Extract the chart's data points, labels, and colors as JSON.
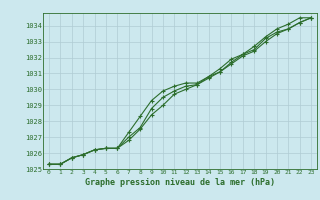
{
  "xlabel": "Graphe pression niveau de la mer (hPa)",
  "bg_color": "#cce8ee",
  "grid_color": "#b0ccd4",
  "line_color": "#2d6e2d",
  "hours": [
    0,
    1,
    2,
    3,
    4,
    5,
    6,
    7,
    8,
    9,
    10,
    11,
    12,
    13,
    14,
    15,
    16,
    17,
    18,
    19,
    20,
    21,
    22,
    23
  ],
  "line1": [
    1025.3,
    1025.3,
    1025.7,
    1025.9,
    1026.2,
    1026.3,
    1026.3,
    1027.3,
    1028.3,
    1029.3,
    1029.9,
    1030.2,
    1030.4,
    1030.4,
    1030.8,
    1031.3,
    1031.9,
    1032.2,
    1032.5,
    1033.2,
    1033.6,
    1033.8,
    1034.2,
    1034.5
  ],
  "line2": [
    1025.3,
    1025.3,
    1025.7,
    1025.9,
    1026.2,
    1026.3,
    1026.3,
    1026.8,
    1027.5,
    1028.4,
    1029.0,
    1029.7,
    1030.0,
    1030.3,
    1030.7,
    1031.1,
    1031.6,
    1032.1,
    1032.4,
    1033.0,
    1033.5,
    1033.8,
    1034.2,
    1034.5
  ],
  "line3": [
    1025.3,
    1025.3,
    1025.7,
    1025.9,
    1026.2,
    1026.3,
    1026.3,
    1027.0,
    1027.6,
    1028.8,
    1029.5,
    1029.9,
    1030.2,
    1030.3,
    1030.8,
    1031.1,
    1031.7,
    1032.2,
    1032.7,
    1033.3,
    1033.8,
    1034.1,
    1034.5,
    1034.5
  ],
  "ylim_min": 1025.0,
  "ylim_max": 1034.8,
  "yticks": [
    1025,
    1026,
    1027,
    1028,
    1029,
    1030,
    1031,
    1032,
    1033,
    1034
  ],
  "xticks": [
    0,
    1,
    2,
    3,
    4,
    5,
    6,
    7,
    8,
    9,
    10,
    11,
    12,
    13,
    14,
    15,
    16,
    17,
    18,
    19,
    20,
    21,
    22,
    23
  ]
}
